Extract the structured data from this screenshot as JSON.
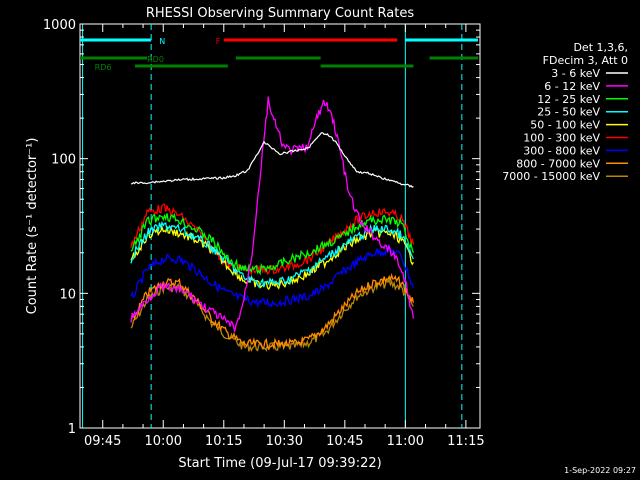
{
  "chart_data": {
    "type": "line",
    "title": "RHESSI Observing Summary Count Rates",
    "xlabel": "Start Time (09-Jul-17 09:39:22)",
    "ylabel": "Count Rate (s⁻¹ detector⁻¹)",
    "x_range": [
      "09:39:22",
      "11:18:30"
    ],
    "ylim": [
      1,
      1000
    ],
    "yscale": "log",
    "x_ticks": [
      "09:45",
      "10:00",
      "10:15",
      "10:30",
      "10:45",
      "11:00",
      "11:15"
    ],
    "y_ticks": [
      "1",
      "10",
      "100",
      "1000"
    ],
    "footer": "1-Sep-2022 09:27",
    "legend": {
      "placement": "right",
      "header": [
        "Det 1,3,6,",
        "FDecim 3, Att 0"
      ],
      "entries": [
        {
          "label": "3 - 6 keV",
          "color": "#ffffff"
        },
        {
          "label": "6 - 12 keV",
          "color": "#ff00ff"
        },
        {
          "label": "12 - 25 keV",
          "color": "#00ff00"
        },
        {
          "label": "25 - 50 keV",
          "color": "#00ffff"
        },
        {
          "label": "50 - 100 keV",
          "color": "#ffff00"
        },
        {
          "label": "100 - 300 keV",
          "color": "#ff0000"
        },
        {
          "label": "300 - 800 keV",
          "color": "#0000ff"
        },
        {
          "label": "800 - 7000 keV",
          "color": "#ff8c00"
        },
        {
          "label": "7000 - 15000 keV",
          "color": "#b8860b"
        }
      ]
    },
    "series": [
      {
        "name": "3 - 6 keV",
        "color": "#ffffff",
        "x": [
          "09:52",
          "09:55",
          "10:00",
          "10:05",
          "10:10",
          "10:15",
          "10:18",
          "10:21",
          "10:23",
          "10:25",
          "10:27",
          "10:29",
          "10:31",
          "10:33",
          "10:36",
          "10:39",
          "10:41",
          "10:43",
          "10:45",
          "10:48",
          "10:51",
          "10:54",
          "10:57",
          "10:59",
          "11:02"
        ],
        "y": [
          66,
          66,
          68,
          70,
          71,
          72,
          75,
          82,
          105,
          132,
          120,
          108,
          112,
          115,
          120,
          155,
          150,
          130,
          105,
          80,
          78,
          72,
          68,
          65,
          62
        ]
      },
      {
        "name": "6 - 12 keV",
        "color": "#ff00ff",
        "x": [
          "09:52",
          "09:56",
          "09:59",
          "10:02",
          "10:06",
          "10:10",
          "10:13",
          "10:16",
          "10:18",
          "10:20",
          "10:22",
          "10:24",
          "10:26",
          "10:28",
          "10:30",
          "10:32",
          "10:34",
          "10:36",
          "10:38",
          "10:40",
          "10:42",
          "10:44",
          "10:46",
          "10:49",
          "10:52",
          "10:55",
          "10:58",
          "11:00",
          "11:02"
        ],
        "y": [
          6.5,
          9,
          11,
          11,
          10,
          8,
          7,
          6,
          5.5,
          9,
          20,
          75,
          270,
          170,
          120,
          115,
          118,
          125,
          200,
          265,
          200,
          110,
          55,
          33,
          27,
          22,
          18,
          12,
          6.5
        ]
      },
      {
        "name": "12 - 25 keV",
        "color": "#00ff00",
        "x": [
          "09:52",
          "09:56",
          "10:00",
          "10:04",
          "10:08",
          "10:12",
          "10:16",
          "10:20",
          "10:24",
          "10:28",
          "10:32",
          "10:36",
          "10:40",
          "10:44",
          "10:48",
          "10:52",
          "10:56",
          "10:59",
          "11:02"
        ],
        "y": [
          20,
          34,
          38,
          35,
          30,
          25,
          18,
          15,
          15,
          16,
          18,
          20,
          23,
          26,
          32,
          35,
          35,
          33,
          20
        ]
      },
      {
        "name": "25 - 50 keV",
        "color": "#00ffff",
        "x": [
          "09:52",
          "09:56",
          "10:00",
          "10:04",
          "10:08",
          "10:12",
          "10:16",
          "10:20",
          "10:24",
          "10:28",
          "10:32",
          "10:36",
          "10:40",
          "10:44",
          "10:48",
          "10:52",
          "10:56",
          "10:59",
          "11:02"
        ],
        "y": [
          18,
          28,
          32,
          30,
          26,
          22,
          17,
          13,
          12,
          12,
          13,
          15,
          18,
          22,
          26,
          30,
          30,
          27,
          18
        ]
      },
      {
        "name": "50 - 100 keV",
        "color": "#ffff00",
        "x": [
          "09:52",
          "09:56",
          "10:00",
          "10:04",
          "10:08",
          "10:12",
          "10:16",
          "10:20",
          "10:24",
          "10:28",
          "10:32",
          "10:36",
          "10:40",
          "10:44",
          "10:48",
          "10:52",
          "10:56",
          "10:59",
          "11:02"
        ],
        "y": [
          17,
          27,
          30,
          28,
          25,
          21,
          16,
          12.5,
          11.5,
          11.5,
          12.5,
          14,
          17,
          21,
          25,
          28,
          28,
          25,
          17
        ]
      },
      {
        "name": "100 - 300 keV",
        "color": "#ff0000",
        "x": [
          "09:52",
          "09:56",
          "10:00",
          "10:04",
          "10:08",
          "10:12",
          "10:16",
          "10:20",
          "10:24",
          "10:28",
          "10:32",
          "10:36",
          "10:40",
          "10:44",
          "10:48",
          "10:52",
          "10:56",
          "10:59",
          "11:02"
        ],
        "y": [
          22,
          40,
          43,
          38,
          30,
          22,
          16,
          15,
          15,
          15,
          16,
          18,
          22,
          28,
          35,
          40,
          40,
          36,
          23
        ]
      },
      {
        "name": "300 - 800 keV",
        "color": "#0000ff",
        "x": [
          "09:52",
          "09:56",
          "10:00",
          "10:04",
          "10:08",
          "10:12",
          "10:16",
          "10:20",
          "10:24",
          "10:28",
          "10:32",
          "10:36",
          "10:40",
          "10:44",
          "10:48",
          "10:52",
          "10:56",
          "10:59",
          "11:02"
        ],
        "y": [
          9,
          15,
          18,
          18,
          15,
          12,
          10,
          9,
          8.5,
          8.5,
          9,
          9.5,
          11,
          14,
          17,
          20,
          21,
          19,
          11
        ]
      },
      {
        "name": "800 - 7000 keV",
        "color": "#ff8c00",
        "x": [
          "09:52",
          "09:56",
          "10:00",
          "10:04",
          "10:08",
          "10:12",
          "10:16",
          "10:20",
          "10:24",
          "10:28",
          "10:32",
          "10:36",
          "10:40",
          "10:44",
          "10:48",
          "10:52",
          "10:56",
          "10:59",
          "11:02"
        ],
        "y": [
          6,
          10,
          12,
          12,
          9,
          6.5,
          5,
          4.2,
          4.2,
          4.2,
          4.2,
          4.5,
          5.5,
          7.5,
          10,
          12,
          13,
          12,
          8.5
        ]
      },
      {
        "name": "7000 - 15000 keV",
        "color": "#b8860b",
        "x": [
          "09:52",
          "09:56",
          "10:00",
          "10:04",
          "10:08",
          "10:12",
          "10:16",
          "10:20",
          "10:24",
          "10:28",
          "10:32",
          "10:36",
          "10:40",
          "10:44",
          "10:48",
          "10:52",
          "10:56",
          "10:59",
          "11:02"
        ],
        "y": [
          5.5,
          9,
          11,
          11,
          8.5,
          6,
          4.8,
          4,
          4,
          4,
          4,
          4.3,
          5,
          7,
          9.5,
          11,
          12,
          11,
          8
        ]
      }
    ],
    "status_bars": [
      {
        "label": "N",
        "color": "#00ffff",
        "row": "top",
        "label_at": "09:59",
        "segments": [
          [
            "09:39:22",
            "09:57"
          ],
          [
            "11:00",
            "11:18"
          ]
        ]
      },
      {
        "label": "F",
        "color": "#ff0000",
        "row": "top",
        "label_at": "10:13",
        "segments": [
          [
            "10:15",
            "10:58"
          ]
        ]
      },
      {
        "label": "RD0",
        "color": "#008000",
        "row": "middle",
        "label_at": "09:56",
        "segments": [
          [
            "09:39:22",
            "09:56"
          ],
          [
            "10:18",
            "10:39"
          ],
          [
            "11:06",
            "11:18"
          ]
        ]
      },
      {
        "label": "RD6",
        "color": "#008000",
        "row": "bottom",
        "label_at": "09:43",
        "segments": [
          [
            "09:53",
            "10:16"
          ],
          [
            "10:39",
            "11:02"
          ]
        ]
      }
    ],
    "vlines": [
      {
        "time": "09:40",
        "color": "#00ffff",
        "style": "solid"
      },
      {
        "time": "09:57",
        "color": "#00ffff",
        "style": "dashed"
      },
      {
        "time": "11:00",
        "color": "#00ffff",
        "style": "solid"
      },
      {
        "time": "11:14",
        "color": "#00ffff",
        "style": "dashed"
      }
    ]
  }
}
